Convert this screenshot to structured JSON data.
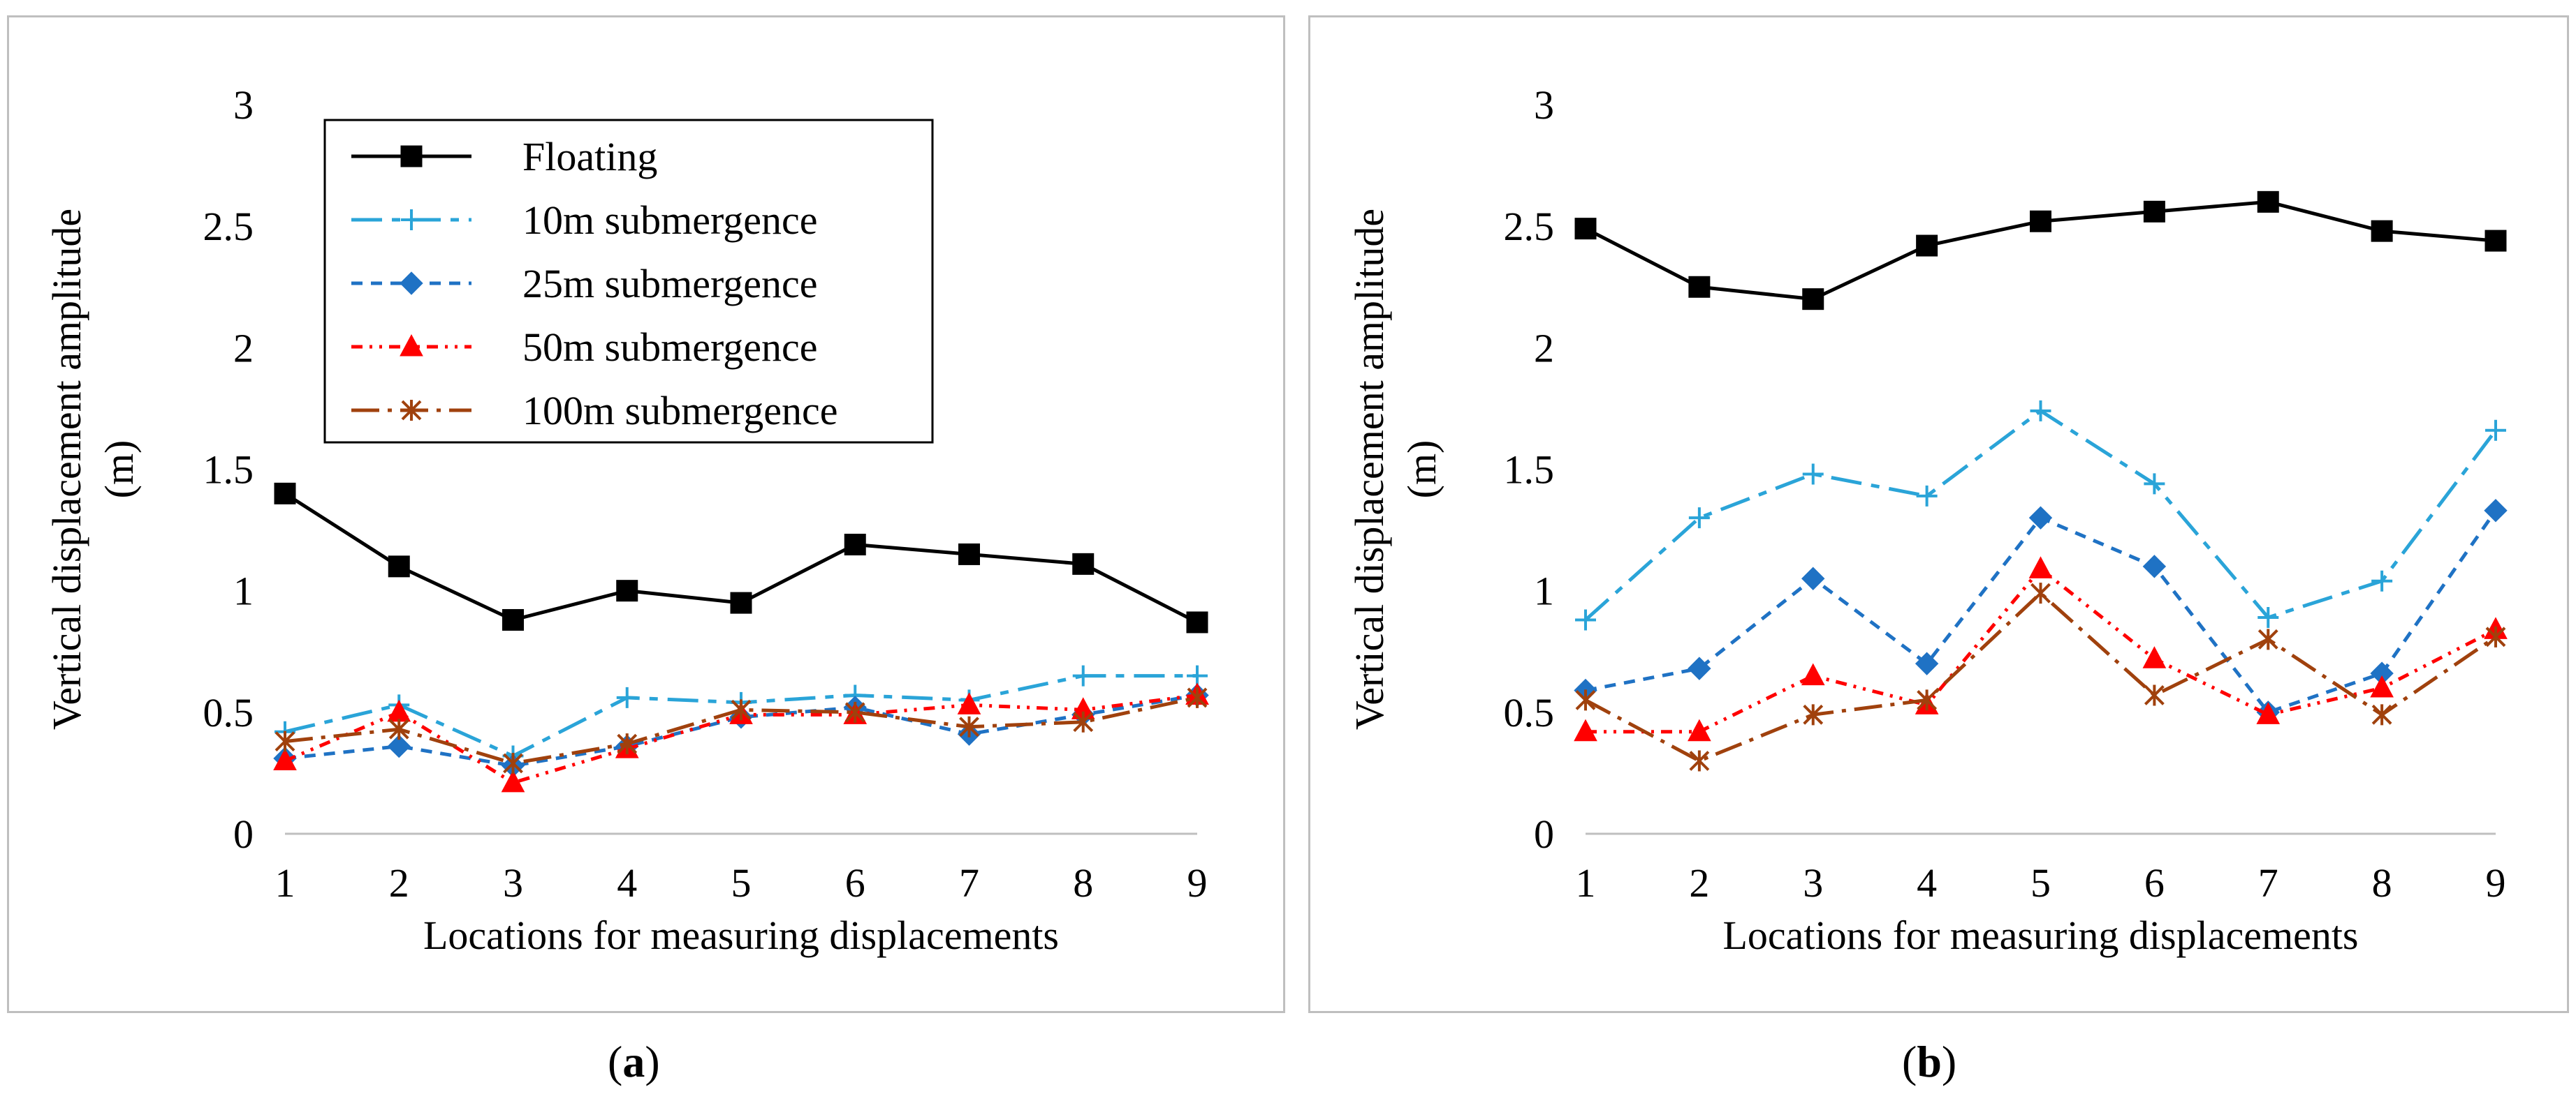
{
  "series_styles": {
    "Floating": {
      "color": "#000000",
      "dash": "",
      "marker": "square"
    },
    "10m submergence": {
      "color": "#2aa4d8",
      "dash": "44,14,12,14",
      "marker": "plus"
    },
    "25m submergence": {
      "color": "#1f72c4",
      "dash": "16,12",
      "marker": "diamond"
    },
    "50m submergence": {
      "color": "#ff0000",
      "dash": "16,10,4,10,4,10",
      "marker": "triangle"
    },
    "100m submergence": {
      "color": "#a0410d",
      "dash": "40,12,6,12",
      "marker": "star"
    }
  },
  "chart_data": [
    {
      "type": "line",
      "panel_label": "a",
      "xlabel": "Locations for measuring displacements",
      "ylabel": "Vertical displacement amplitude (m)",
      "x": [
        1,
        2,
        3,
        4,
        5,
        6,
        7,
        8,
        9
      ],
      "ylim": [
        0,
        3
      ],
      "yticks": [
        "0",
        "0.5",
        "1",
        "1.5",
        "2",
        "2.5",
        "3"
      ],
      "legend": "top-left",
      "series": [
        {
          "name": "Floating",
          "values": [
            1.4,
            1.1,
            0.88,
            1.0,
            0.95,
            1.19,
            1.15,
            1.11,
            0.87
          ]
        },
        {
          "name": "10m submergence",
          "values": [
            0.42,
            0.53,
            0.32,
            0.56,
            0.54,
            0.57,
            0.55,
            0.65,
            0.65
          ]
        },
        {
          "name": "25m submergence",
          "values": [
            0.31,
            0.36,
            0.28,
            0.36,
            0.48,
            0.52,
            0.41,
            0.49,
            0.57
          ]
        },
        {
          "name": "50m submergence",
          "values": [
            0.3,
            0.5,
            0.21,
            0.35,
            0.49,
            0.49,
            0.53,
            0.51,
            0.57
          ]
        },
        {
          "name": "100m submergence",
          "values": [
            0.38,
            0.43,
            0.29,
            0.37,
            0.51,
            0.5,
            0.44,
            0.46,
            0.56
          ]
        }
      ]
    },
    {
      "type": "line",
      "panel_label": "b",
      "xlabel": "Locations for measuring displacements",
      "ylabel": "Vertical displacement amplitude (m)",
      "x": [
        1,
        2,
        3,
        4,
        5,
        6,
        7,
        8,
        9
      ],
      "ylim": [
        0,
        3
      ],
      "yticks": [
        "0",
        "0.5",
        "1",
        "1.5",
        "2",
        "2.5",
        "3"
      ],
      "legend": "none",
      "series": [
        {
          "name": "Floating",
          "values": [
            2.49,
            2.25,
            2.2,
            2.42,
            2.52,
            2.56,
            2.6,
            2.48,
            2.44
          ]
        },
        {
          "name": "10m submergence",
          "values": [
            0.88,
            1.3,
            1.48,
            1.39,
            1.74,
            1.44,
            0.89,
            1.04,
            1.66
          ]
        },
        {
          "name": "25m submergence",
          "values": [
            0.59,
            0.68,
            1.05,
            0.7,
            1.3,
            1.1,
            0.5,
            0.66,
            1.33
          ]
        },
        {
          "name": "50m submergence",
          "values": [
            0.42,
            0.42,
            0.65,
            0.53,
            1.09,
            0.72,
            0.49,
            0.6,
            0.84
          ]
        },
        {
          "name": "100m submergence",
          "values": [
            0.55,
            0.3,
            0.49,
            0.55,
            0.99,
            0.57,
            0.8,
            0.49,
            0.81
          ]
        }
      ]
    }
  ]
}
